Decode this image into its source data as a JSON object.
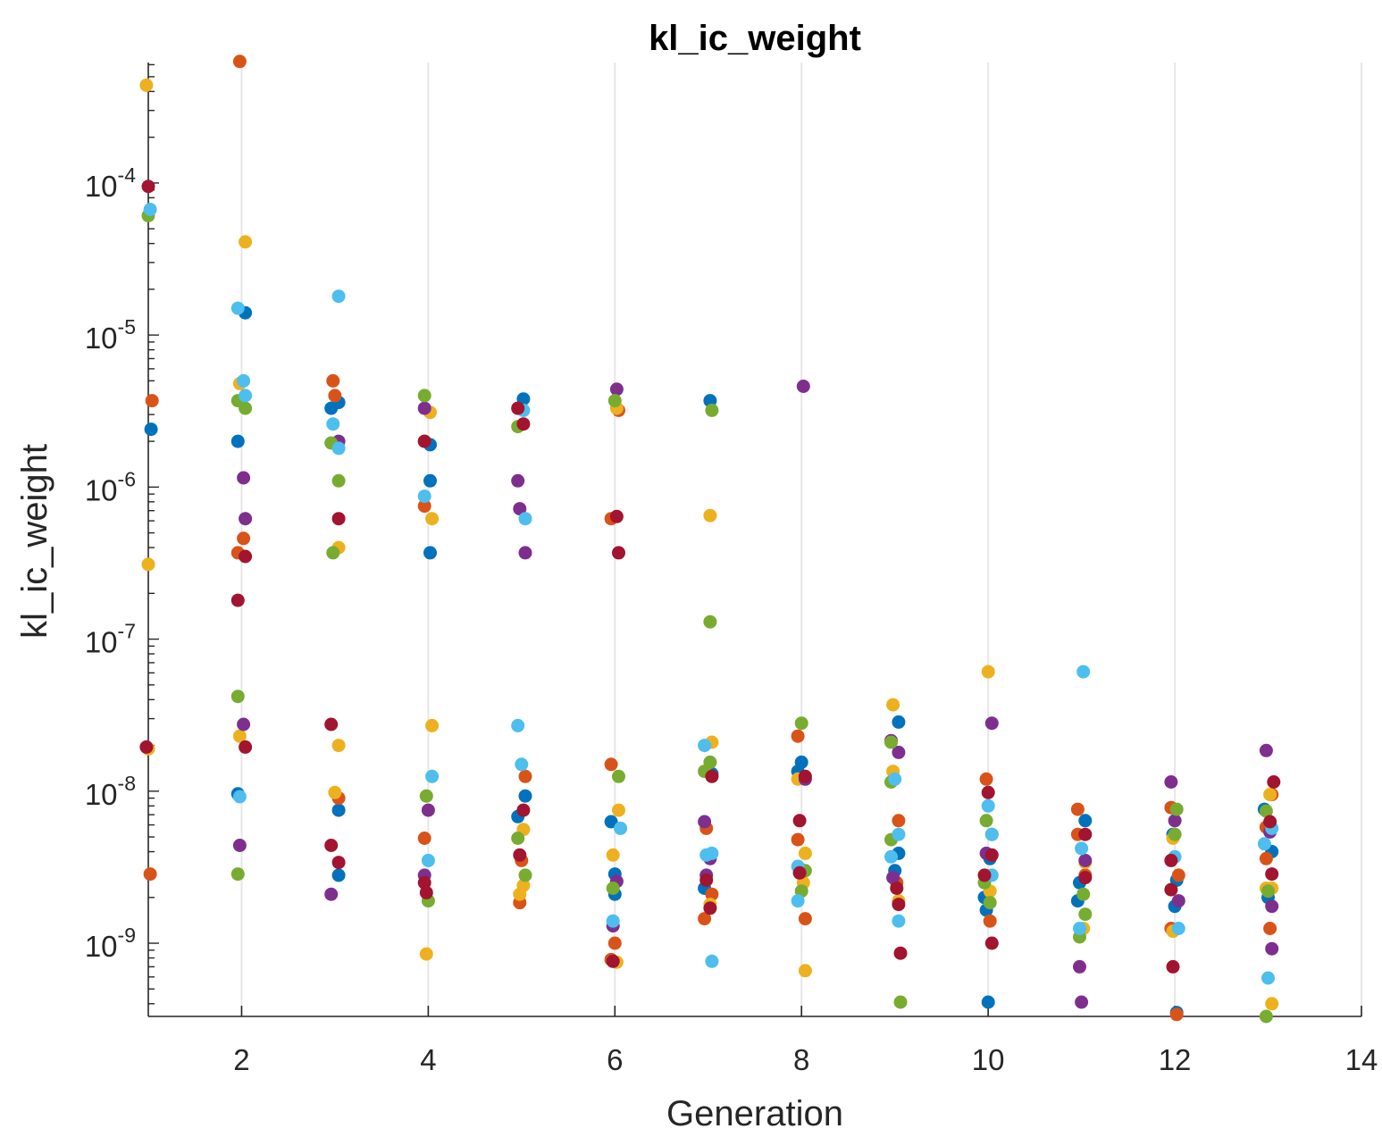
{
  "chart_data": {
    "type": "scatter",
    "title": "kl_ic_weight",
    "xlabel": "Generation",
    "ylabel": "kl_ic_weight",
    "xlim": [
      1,
      14
    ],
    "ylim": [
      3.3e-10,
      0.00062
    ],
    "yscale": "log",
    "xticks": [
      2,
      4,
      6,
      8,
      10,
      12,
      14
    ],
    "yticks": [
      {
        "base": "10",
        "exp": "-9",
        "value": 1e-09
      },
      {
        "base": "10",
        "exp": "-8",
        "value": 1e-08
      },
      {
        "base": "10",
        "exp": "-7",
        "value": 1e-07
      },
      {
        "base": "10",
        "exp": "-6",
        "value": 1e-06
      },
      {
        "base": "10",
        "exp": "-5",
        "value": 1e-05
      },
      {
        "base": "10",
        "exp": "-4",
        "value": 0.0001
      }
    ],
    "grid": "x-only",
    "colors": [
      "#0072BD",
      "#D95319",
      "#EDB120",
      "#7E2F8E",
      "#77AC30",
      "#4DBEEE",
      "#A2142F"
    ],
    "series": [
      {
        "color": "#0072BD",
        "points": [
          [
            1.03,
            2.4e-06
          ],
          [
            1.96,
            2e-06
          ],
          [
            2.04,
            1.4e-05
          ],
          [
            1.96,
            9.6e-09
          ],
          [
            2.96,
            3.3e-06
          ],
          [
            3.04,
            2.8e-09
          ],
          [
            3.04,
            7.5e-09
          ],
          [
            3.04,
            3.6e-06
          ],
          [
            4.02,
            1.1e-06
          ],
          [
            4.02,
            3.7e-07
          ],
          [
            4.02,
            1.9e-06
          ],
          [
            4.96,
            6.8e-09
          ],
          [
            5.02,
            3.8e-06
          ],
          [
            5.04,
            9.3e-09
          ],
          [
            5.96,
            6.3e-09
          ],
          [
            6.0,
            2.1e-09
          ],
          [
            6.0,
            2.85e-09
          ],
          [
            7.02,
            3.7e-06
          ],
          [
            7.04,
            1.3e-08
          ],
          [
            6.96,
            2.3e-09
          ],
          [
            7.96,
            1.35e-08
          ],
          [
            8.0,
            1.55e-08
          ],
          [
            7.98,
            2.9e-09
          ],
          [
            9.04,
            2.85e-08
          ],
          [
            9.04,
            3.9e-09
          ],
          [
            9.0,
            3e-09
          ],
          [
            9.96,
            2e-09
          ],
          [
            9.98,
            1.65e-09
          ],
          [
            10.02,
            3.6e-09
          ],
          [
            10.0,
            4.1e-10
          ],
          [
            10.96,
            1.9e-09
          ],
          [
            10.98,
            2.5e-09
          ],
          [
            11.04,
            6.4e-09
          ],
          [
            12.02,
            2.6e-09
          ],
          [
            11.98,
            5.2e-09
          ],
          [
            12.0,
            1.75e-09
          ],
          [
            12.02,
            3.5e-10
          ],
          [
            12.96,
            7.6e-09
          ],
          [
            13.04,
            4e-09
          ],
          [
            13.0,
            2e-09
          ]
        ]
      },
      {
        "color": "#D95319",
        "points": [
          [
            1.98,
            0.00063
          ],
          [
            1.04,
            3.7e-06
          ],
          [
            1.02,
            2.85e-09
          ],
          [
            2.02,
            4.6e-07
          ],
          [
            1.96,
            3.7e-07
          ],
          [
            2.98,
            5e-06
          ],
          [
            3.0,
            4e-06
          ],
          [
            3.04,
            9e-09
          ],
          [
            3.96,
            7.5e-07
          ],
          [
            3.96,
            4.9e-09
          ],
          [
            5.04,
            1.25e-08
          ],
          [
            5.0,
            3.5e-09
          ],
          [
            4.98,
            1.85e-09
          ],
          [
            5.96,
            6.2e-07
          ],
          [
            5.96,
            1.5e-08
          ],
          [
            6.04,
            3.2e-06
          ],
          [
            6.0,
            1e-09
          ],
          [
            5.96,
            7.8e-10
          ],
          [
            6.98,
            5.7e-09
          ],
          [
            7.04,
            2.1e-09
          ],
          [
            6.96,
            1.45e-09
          ],
          [
            7.96,
            2.3e-08
          ],
          [
            7.96,
            4.8e-09
          ],
          [
            8.04,
            1.45e-09
          ],
          [
            9.04,
            6.4e-09
          ],
          [
            9.02,
            2.5e-09
          ],
          [
            9.98,
            1.2e-08
          ],
          [
            10.04,
            5.2e-09
          ],
          [
            10.02,
            1.4e-09
          ],
          [
            10.96,
            7.6e-09
          ],
          [
            10.96,
            5.2e-09
          ],
          [
            11.04,
            2.8e-09
          ],
          [
            11.96,
            7.8e-09
          ],
          [
            12.04,
            2.8e-09
          ],
          [
            11.96,
            1.25e-09
          ],
          [
            12.02,
            3.4e-10
          ],
          [
            12.98,
            5.8e-09
          ],
          [
            12.98,
            3.6e-09
          ],
          [
            13.02,
            1.25e-09
          ],
          [
            13.04,
            9.5e-09
          ]
        ]
      },
      {
        "color": "#EDB120",
        "points": [
          [
            0.98,
            0.00044
          ],
          [
            1.0,
            3.1e-07
          ],
          [
            1.0,
            1.9e-08
          ],
          [
            2.04,
            4.1e-05
          ],
          [
            1.98,
            4.8e-06
          ],
          [
            1.98,
            2.3e-08
          ],
          [
            3.0,
            9.8e-09
          ],
          [
            3.04,
            2e-08
          ],
          [
            3.04,
            4e-07
          ],
          [
            4.02,
            3.1e-06
          ],
          [
            4.04,
            6.2e-07
          ],
          [
            4.04,
            2.7e-08
          ],
          [
            3.98,
            8.5e-10
          ],
          [
            5.02,
            5.6e-09
          ],
          [
            4.98,
            2.1e-09
          ],
          [
            5.02,
            2.4e-09
          ],
          [
            6.02,
            3.3e-06
          ],
          [
            6.04,
            7.5e-09
          ],
          [
            5.98,
            3.8e-09
          ],
          [
            6.02,
            7.5e-10
          ],
          [
            7.02,
            6.5e-07
          ],
          [
            7.04,
            2.1e-08
          ],
          [
            7.02,
            1.8e-09
          ],
          [
            7.96,
            1.2e-08
          ],
          [
            8.04,
            3.9e-09
          ],
          [
            8.02,
            2.5e-09
          ],
          [
            8.04,
            6.6e-10
          ],
          [
            8.98,
            3.7e-08
          ],
          [
            8.98,
            1.35e-08
          ],
          [
            9.04,
            1.9e-09
          ],
          [
            10.0,
            6.1e-08
          ],
          [
            10.02,
            2.2e-09
          ],
          [
            11.04,
            3.4e-09
          ],
          [
            11.02,
            1.25e-09
          ],
          [
            11.98,
            4.9e-09
          ],
          [
            11.98,
            1.2e-09
          ],
          [
            12.98,
            2.3e-09
          ],
          [
            13.02,
            9.5e-09
          ],
          [
            13.04,
            4e-10
          ],
          [
            13.04,
            2.3e-09
          ]
        ]
      },
      {
        "color": "#7E2F8E",
        "points": [
          [
            2.02,
            1.15e-06
          ],
          [
            2.04,
            6.2e-07
          ],
          [
            2.02,
            2.75e-08
          ],
          [
            1.98,
            4.4e-09
          ],
          [
            2.96,
            2.1e-09
          ],
          [
            3.04,
            2e-06
          ],
          [
            3.96,
            3.3e-06
          ],
          [
            4.0,
            7.5e-09
          ],
          [
            3.96,
            2.8e-09
          ],
          [
            4.96,
            1.1e-06
          ],
          [
            4.98,
            7.2e-07
          ],
          [
            5.04,
            3.7e-07
          ],
          [
            6.02,
            4.4e-06
          ],
          [
            6.02,
            2.55e-09
          ],
          [
            5.98,
            1.3e-09
          ],
          [
            6.96,
            6.3e-09
          ],
          [
            7.02,
            3.6e-09
          ],
          [
            6.98,
            2.8e-09
          ],
          [
            8.02,
            4.6e-06
          ],
          [
            8.04,
            1.2e-08
          ],
          [
            7.98,
            3.1e-09
          ],
          [
            8.96,
            2.15e-08
          ],
          [
            9.04,
            1.8e-08
          ],
          [
            8.98,
            2.7e-09
          ],
          [
            10.04,
            2.8e-08
          ],
          [
            9.98,
            3.9e-09
          ],
          [
            10.98,
            7e-10
          ],
          [
            11.04,
            3.5e-09
          ],
          [
            11.0,
            4.1e-10
          ],
          [
            11.96,
            1.15e-08
          ],
          [
            12.0,
            6.4e-09
          ],
          [
            12.04,
            1.9e-09
          ],
          [
            12.98,
            1.85e-08
          ],
          [
            13.02,
            5.4e-09
          ],
          [
            13.04,
            1.75e-09
          ],
          [
            13.04,
            9.2e-10
          ]
        ]
      },
      {
        "color": "#77AC30",
        "points": [
          [
            1.0,
            6.1e-05
          ],
          [
            1.96,
            3.7e-06
          ],
          [
            2.04,
            3.3e-06
          ],
          [
            1.96,
            4.2e-08
          ],
          [
            1.96,
            2.85e-09
          ],
          [
            3.04,
            1.1e-06
          ],
          [
            2.96,
            1.95e-06
          ],
          [
            2.98,
            3.7e-07
          ],
          [
            3.96,
            4e-06
          ],
          [
            3.96,
            2e-06
          ],
          [
            3.98,
            9.3e-09
          ],
          [
            4.0,
            1.9e-09
          ],
          [
            4.96,
            2.5e-06
          ],
          [
            4.96,
            4.9e-09
          ],
          [
            5.04,
            2.8e-09
          ],
          [
            6.0,
            3.7e-06
          ],
          [
            6.04,
            1.25e-08
          ],
          [
            5.98,
            2.3e-09
          ],
          [
            7.04,
            3.2e-06
          ],
          [
            7.02,
            1.3e-07
          ],
          [
            7.02,
            1.55e-08
          ],
          [
            6.96,
            1.35e-08
          ],
          [
            8.0,
            2.8e-08
          ],
          [
            8.04,
            3e-09
          ],
          [
            8.0,
            2.2e-09
          ],
          [
            8.96,
            2.1e-08
          ],
          [
            8.96,
            1.15e-08
          ],
          [
            8.96,
            4.8e-09
          ],
          [
            9.06,
            4.1e-10
          ],
          [
            9.98,
            6.4e-09
          ],
          [
            9.96,
            2.5e-09
          ],
          [
            10.02,
            1.85e-09
          ],
          [
            11.02,
            2.1e-09
          ],
          [
            11.04,
            1.55e-09
          ],
          [
            10.98,
            1.1e-09
          ],
          [
            12.02,
            7.6e-09
          ],
          [
            12.0,
            5.2e-09
          ],
          [
            12.98,
            7.4e-09
          ],
          [
            13.0,
            2.2e-09
          ],
          [
            12.98,
            3.3e-10
          ]
        ]
      },
      {
        "color": "#4DBEEE",
        "points": [
          [
            1.02,
            6.7e-05
          ],
          [
            1.96,
            1.5e-05
          ],
          [
            2.02,
            5e-06
          ],
          [
            2.04,
            4e-06
          ],
          [
            1.98,
            9.2e-09
          ],
          [
            3.04,
            1.8e-05
          ],
          [
            2.98,
            2.6e-06
          ],
          [
            3.04,
            1.8e-06
          ],
          [
            3.96,
            8.7e-07
          ],
          [
            4.04,
            1.25e-08
          ],
          [
            4.0,
            3.5e-09
          ],
          [
            4.96,
            2.7e-08
          ],
          [
            5.0,
            1.5e-08
          ],
          [
            5.02,
            3.2e-06
          ],
          [
            5.04,
            6.2e-07
          ],
          [
            5.98,
            1.4e-09
          ],
          [
            6.06,
            5.7e-09
          ],
          [
            6.96,
            2e-08
          ],
          [
            7.04,
            3.9e-09
          ],
          [
            6.98,
            3.8e-09
          ],
          [
            7.04,
            7.6e-10
          ],
          [
            7.96,
            3.2e-09
          ],
          [
            7.96,
            1.9e-09
          ],
          [
            8.96,
            3.7e-09
          ],
          [
            9.0,
            1.2e-08
          ],
          [
            9.04,
            5.2e-09
          ],
          [
            9.04,
            1.4e-09
          ],
          [
            10.0,
            8e-09
          ],
          [
            10.04,
            5.2e-09
          ],
          [
            10.04,
            2.8e-09
          ],
          [
            11.02,
            6.1e-08
          ],
          [
            11.0,
            4.2e-09
          ],
          [
            10.98,
            1.25e-09
          ],
          [
            12.0,
            3.7e-09
          ],
          [
            12.04,
            1.25e-09
          ],
          [
            12.96,
            4.5e-09
          ],
          [
            13.04,
            5.7e-09
          ],
          [
            13.0,
            5.9e-10
          ]
        ]
      },
      {
        "color": "#A2142F",
        "points": [
          [
            1.0,
            9.5e-05
          ],
          [
            0.98,
            1.95e-08
          ],
          [
            1.96,
            1.8e-07
          ],
          [
            2.04,
            3.5e-07
          ],
          [
            2.04,
            1.95e-08
          ],
          [
            2.96,
            2.75e-08
          ],
          [
            2.96,
            4.4e-09
          ],
          [
            3.04,
            3.4e-09
          ],
          [
            3.04,
            6.2e-07
          ],
          [
            3.96,
            2e-06
          ],
          [
            3.96,
            2.5e-09
          ],
          [
            3.98,
            2.15e-09
          ],
          [
            4.96,
            3.3e-06
          ],
          [
            5.02,
            2.6e-06
          ],
          [
            5.02,
            7.5e-09
          ],
          [
            4.98,
            3.8e-09
          ],
          [
            6.02,
            6.4e-07
          ],
          [
            6.04,
            3.7e-07
          ],
          [
            5.98,
            7.6e-10
          ],
          [
            7.04,
            1.25e-08
          ],
          [
            6.98,
            2.6e-09
          ],
          [
            7.02,
            1.7e-09
          ],
          [
            8.04,
            1.25e-08
          ],
          [
            7.98,
            6.4e-09
          ],
          [
            7.98,
            2.9e-09
          ],
          [
            9.04,
            1.8e-09
          ],
          [
            9.06,
            8.6e-10
          ],
          [
            9.02,
            2.3e-09
          ],
          [
            10.0,
            9.8e-09
          ],
          [
            10.04,
            3.8e-09
          ],
          [
            9.96,
            2.8e-09
          ],
          [
            10.04,
            1e-09
          ],
          [
            11.04,
            5.2e-09
          ],
          [
            11.04,
            2.7e-09
          ],
          [
            11.96,
            3.5e-09
          ],
          [
            11.96,
            2.25e-09
          ],
          [
            11.98,
            7e-10
          ],
          [
            13.06,
            1.15e-08
          ],
          [
            13.02,
            6.3e-09
          ],
          [
            13.04,
            2.85e-09
          ]
        ]
      }
    ]
  }
}
